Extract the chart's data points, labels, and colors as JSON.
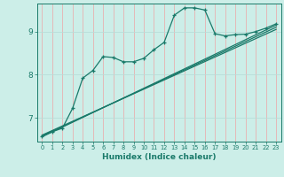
{
  "title": "",
  "xlabel": "Humidex (Indice chaleur)",
  "bg_color": "#cceee8",
  "grid_color_v": "#e8b0b0",
  "grid_color_h": "#b8ddd8",
  "line_color": "#1a7a6a",
  "xlim": [
    -0.5,
    23.5
  ],
  "ylim": [
    6.45,
    9.65
  ],
  "xticks": [
    0,
    1,
    2,
    3,
    4,
    5,
    6,
    7,
    8,
    9,
    10,
    11,
    12,
    13,
    14,
    15,
    16,
    17,
    18,
    19,
    20,
    21,
    22,
    23
  ],
  "yticks": [
    7,
    8,
    9
  ],
  "curve1_x": [
    0,
    1,
    2,
    3,
    4,
    5,
    6,
    7,
    8,
    9,
    10,
    11,
    12,
    13,
    14,
    15,
    16,
    17,
    18,
    19,
    20,
    21,
    22,
    23
  ],
  "curve1_y": [
    6.58,
    6.68,
    6.76,
    7.22,
    7.92,
    8.1,
    8.42,
    8.4,
    8.3,
    8.3,
    8.38,
    8.58,
    8.75,
    9.38,
    9.55,
    9.55,
    9.5,
    8.95,
    8.9,
    8.93,
    8.94,
    9.0,
    9.08,
    9.18
  ],
  "line2_x": [
    0,
    23
  ],
  "line2_y": [
    6.58,
    9.1
  ],
  "line3_x": [
    0,
    23
  ],
  "line3_y": [
    6.6,
    9.05
  ],
  "line4_x": [
    0,
    23
  ],
  "line4_y": [
    6.56,
    9.15
  ]
}
